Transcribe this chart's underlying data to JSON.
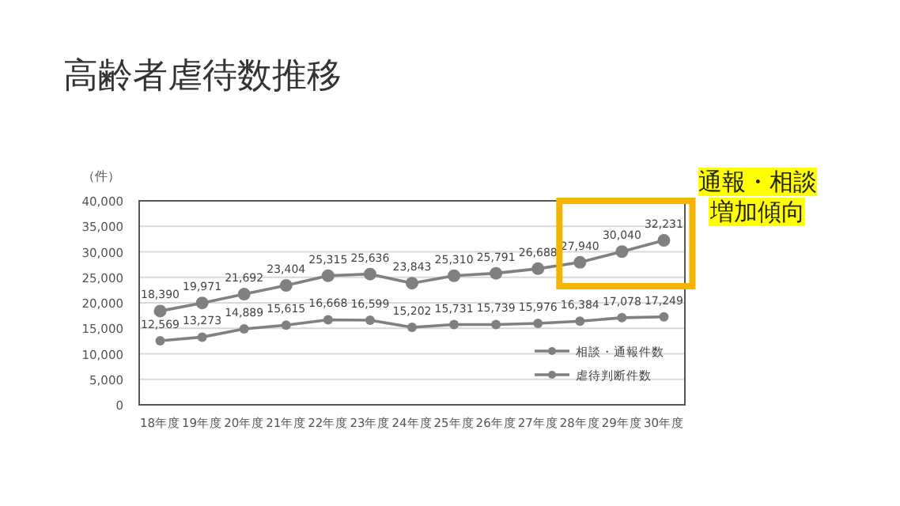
{
  "chart_data": {
    "type": "line",
    "title": "高齢者虐待数推移",
    "ylabel": "（件）",
    "categories": [
      "18年度",
      "19年度",
      "20年度",
      "21年度",
      "22年度",
      "23年度",
      "24年度",
      "25年度",
      "26年度",
      "27年度",
      "28年度",
      "29年度",
      "30年度"
    ],
    "series": [
      {
        "name": "相談・通報件数",
        "color": "#808080",
        "values": [
          18390,
          19971,
          21692,
          23404,
          25315,
          25636,
          23843,
          25310,
          25791,
          26688,
          27940,
          30040,
          32231
        ],
        "value_labels": [
          "18,390",
          "19,971",
          "21,692",
          "23,404",
          "25,315",
          "25,636",
          "23,843",
          "25,310",
          "25,791",
          "26,688",
          "27,940",
          "30,040",
          "32,231"
        ]
      },
      {
        "name": "虐待判断件数",
        "color": "#808080",
        "values": [
          12569,
          13273,
          14889,
          15615,
          16668,
          16599,
          15202,
          15731,
          15739,
          15976,
          16384,
          17078,
          17249
        ],
        "value_labels": [
          "12,569",
          "13,273",
          "14,889",
          "15,615",
          "16,668",
          "16,599",
          "15,202",
          "15,731",
          "15,739",
          "15,976",
          "16,384",
          "17,078",
          "17,249"
        ]
      }
    ],
    "ylim": [
      0,
      40000
    ],
    "yticks": [
      {
        "value": 0,
        "label": "0"
      },
      {
        "value": 5000,
        "label": "5,000"
      },
      {
        "value": 10000,
        "label": "10,000"
      },
      {
        "value": 15000,
        "label": "15,000"
      },
      {
        "value": 20000,
        "label": "20,000"
      },
      {
        "value": 25000,
        "label": "25,000"
      },
      {
        "value": 30000,
        "label": "30,000"
      },
      {
        "value": 35000,
        "label": "35,000"
      },
      {
        "value": 40000,
        "label": "40,000"
      }
    ],
    "grid": "y",
    "legend": "bottom right",
    "marker": "circle",
    "line_style": "solid",
    "annotations": [
      "通報・相談",
      "増加傾向"
    ]
  }
}
